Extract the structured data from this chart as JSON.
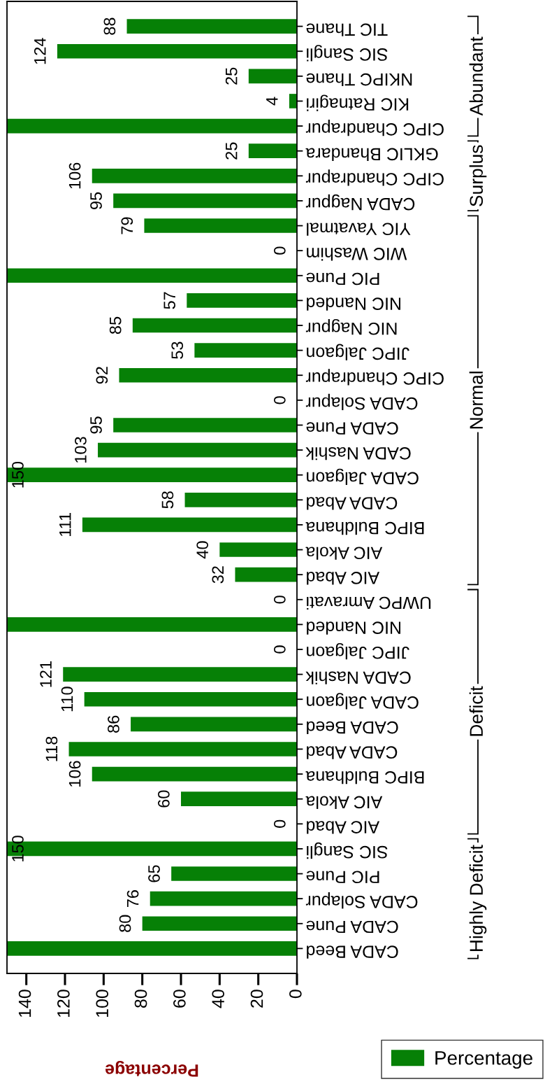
{
  "chart_data": {
    "type": "bar",
    "orientation": "horizontal",
    "xlabel": "Percentage",
    "categories": [
      "TIC Thane",
      "SIC Sangli",
      "NKIPC Thane",
      "KIC Ratnagiri",
      "CIPC Chandrapur",
      "GKLIC Bhandara",
      "CIPC Chandrapur",
      "CADA Nagpur",
      "YIC Yavatmal",
      "WIC Washim",
      "PIC Pune",
      "NIC Nanded",
      "NIC Nagpur",
      "JIPC Jalgaon",
      "CIPC Chandrapur",
      "CADA Solapur",
      "CADA Pune",
      "CADA Nashik",
      "CADA Jalgaon",
      "CADA Abad",
      "BIPC Buldhana",
      "AIC Akola",
      "AIC Abad",
      "UWPC Amravati",
      "NIC Nanded",
      "JIPC Jalgaon",
      "CADA Nashik",
      "CADA Jalgaon",
      "CADA Beed",
      "CADA Abad",
      "BIPC Buldhana",
      "AIC Akola",
      "AIC Abad",
      "SIC Sangli",
      "PIC Pune",
      "CADA Solapur",
      "CADA Pune",
      "CADA Beed"
    ],
    "series": [
      {
        "name": "Percentage",
        "color": "#068006",
        "values": [
          88,
          124,
          25,
          4,
          150,
          25,
          106,
          95,
          79,
          0,
          150,
          57,
          85,
          53,
          92,
          0,
          95,
          103,
          150,
          58,
          111,
          40,
          32,
          0,
          150,
          0,
          121,
          110,
          86,
          118,
          106,
          60,
          0,
          150,
          65,
          76,
          80,
          150
        ],
        "value_labels": [
          "88",
          "124",
          "25",
          "4",
          null,
          "25",
          "106",
          "95",
          "79",
          "0",
          null,
          "57",
          "85",
          "53",
          "92",
          "0",
          "95",
          "103",
          "150",
          "58",
          "111",
          "40",
          "32",
          "0",
          null,
          "0",
          "121",
          "110",
          "86",
          "118",
          "106",
          "60",
          "0",
          "150",
          "65",
          "76",
          "80",
          null
        ]
      }
    ],
    "xlim": [
      150,
      0
    ],
    "xticks": [
      0,
      20,
      40,
      60,
      80,
      100,
      120,
      140
    ],
    "grid": false,
    "legend": "bottom right",
    "annotations": [
      "Abundant",
      "Surplus",
      "Normal",
      "Deficit",
      "Highly Deficit"
    ]
  }
}
